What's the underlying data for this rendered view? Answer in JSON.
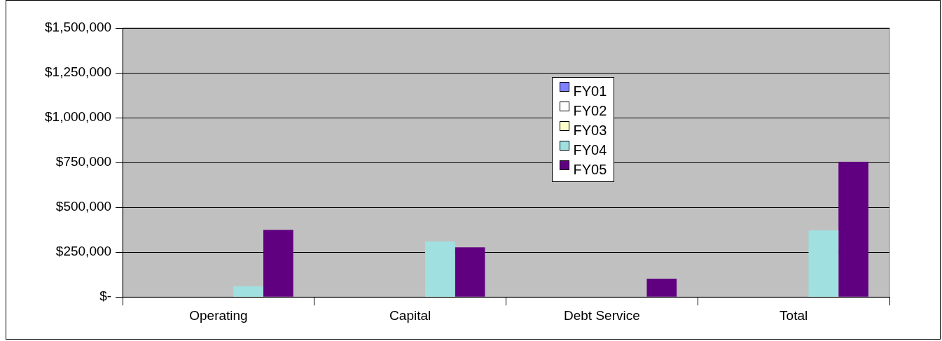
{
  "chart_data": {
    "type": "bar",
    "categories": [
      "Operating",
      "Capital",
      "Debt Service",
      "Total"
    ],
    "series": [
      {
        "name": "FY01",
        "color": "#8080ff",
        "values": [
          null,
          null,
          null,
          null
        ]
      },
      {
        "name": "FY02",
        "color": "#ffffff",
        "values": [
          null,
          null,
          null,
          null
        ]
      },
      {
        "name": "FY03",
        "color": "#ffffcc",
        "values": [
          null,
          null,
          null,
          null
        ]
      },
      {
        "name": "FY04",
        "color": "#a0e0e0",
        "values": [
          60000,
          310000,
          null,
          372000
        ]
      },
      {
        "name": "FY05",
        "color": "#600080",
        "values": [
          375000,
          277000,
          102000,
          754000
        ]
      }
    ],
    "ylim": [
      0,
      1500000
    ],
    "yticks": [
      {
        "value": 0,
        "label": "$-"
      },
      {
        "value": 250000,
        "label": "$250,000"
      },
      {
        "value": 500000,
        "label": "$500,000"
      },
      {
        "value": 750000,
        "label": "$750,000"
      },
      {
        "value": 1000000,
        "label": "$1,000,000"
      },
      {
        "value": 1250000,
        "label": "$1,250,000"
      },
      {
        "value": 1500000,
        "label": "$1,500,000"
      }
    ],
    "grid": "y",
    "legend": "top"
  }
}
